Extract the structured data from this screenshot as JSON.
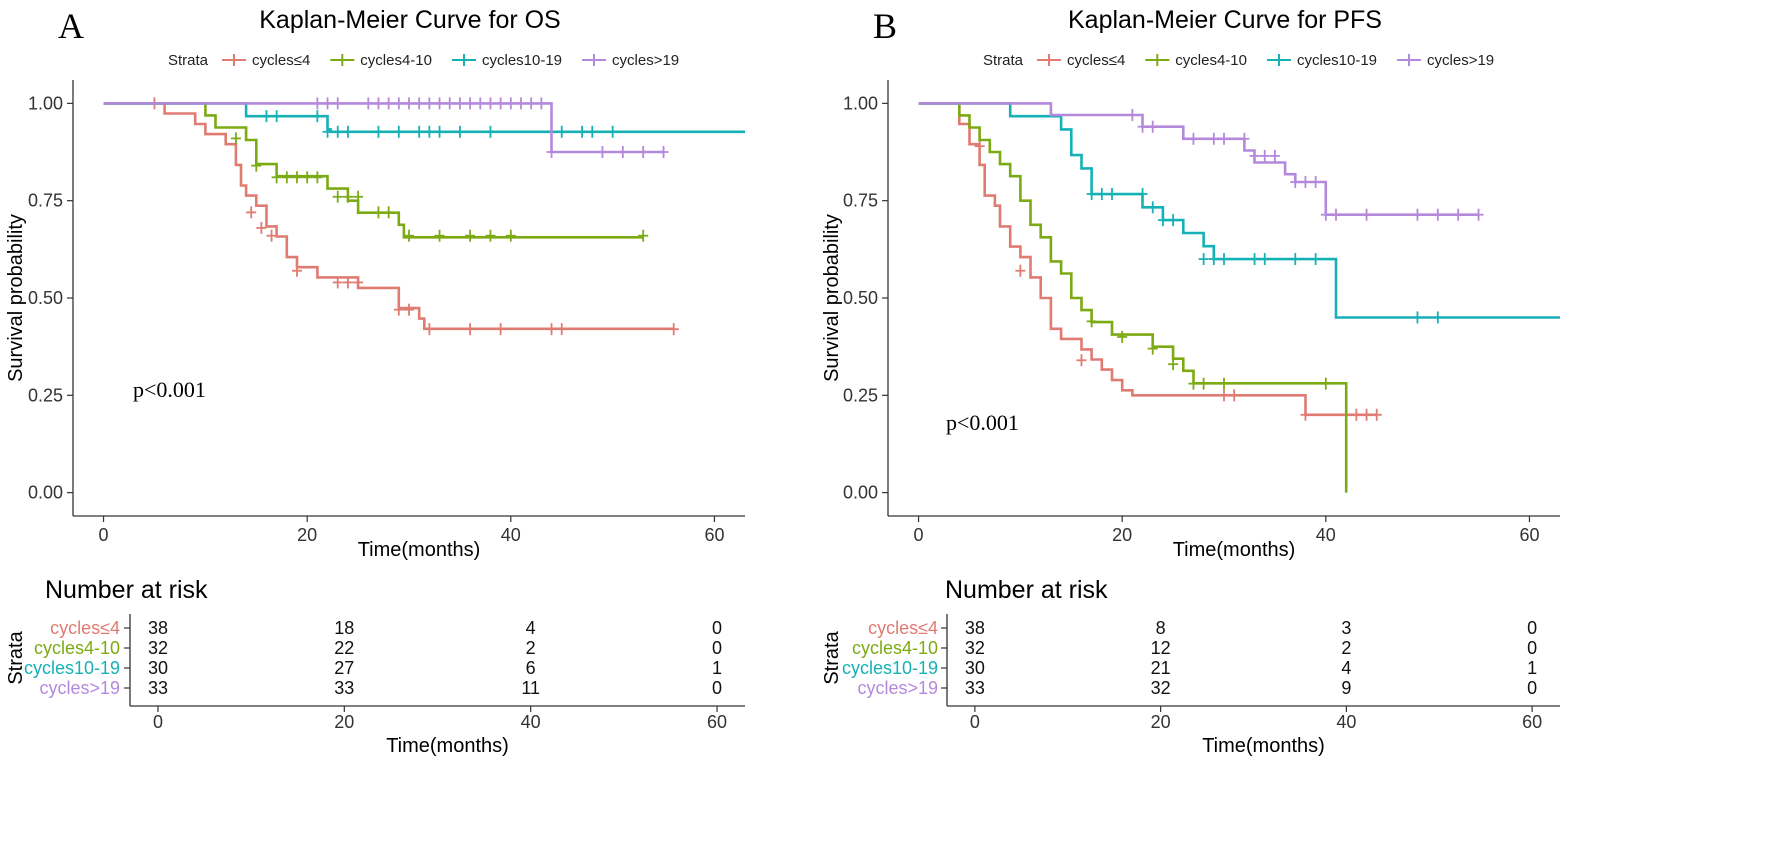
{
  "chart_data": [
    {
      "type": "line",
      "panel_label": "A",
      "title": "Kaplan-Meier Curve for OS",
      "xlabel": "Time(months)",
      "ylabel": "Survival probability",
      "xlim": [
        -3,
        63
      ],
      "ylim": [
        -0.06,
        1.06
      ],
      "x_ticks": [
        "0",
        "20",
        "40",
        "60"
      ],
      "y_ticks": [
        "0.00",
        "0.25",
        "0.50",
        "0.75",
        "1.00"
      ],
      "annotation": "p<0.001",
      "legend_title": "Strata",
      "legend_position": "top",
      "series": [
        {
          "name": "cycles≤4",
          "color": "#E07B72",
          "steps": [
            [
              0,
              1.0
            ],
            [
              6,
              0.974
            ],
            [
              9,
              0.947
            ],
            [
              10,
              0.921
            ],
            [
              12,
              0.895
            ],
            [
              13,
              0.842
            ],
            [
              13.5,
              0.789
            ],
            [
              14,
              0.763
            ],
            [
              15,
              0.737
            ],
            [
              16,
              0.684
            ],
            [
              17,
              0.658
            ],
            [
              18,
              0.605
            ],
            [
              19,
              0.579
            ],
            [
              21,
              0.553
            ],
            [
              25,
              0.526
            ],
            [
              29,
              0.474
            ],
            [
              31,
              0.447
            ],
            [
              31.5,
              0.421
            ]
          ],
          "end": 56,
          "censor": [
            [
              5,
              1.0
            ],
            [
              14.5,
              0.72
            ],
            [
              15.5,
              0.68
            ],
            [
              16.5,
              0.66
            ],
            [
              19,
              0.57
            ],
            [
              23,
              0.54
            ],
            [
              24,
              0.54
            ],
            [
              25,
              0.54
            ],
            [
              29,
              0.47
            ],
            [
              30,
              0.47
            ],
            [
              32,
              0.42
            ],
            [
              36,
              0.42
            ],
            [
              39,
              0.42
            ],
            [
              44,
              0.42
            ],
            [
              45,
              0.42
            ],
            [
              56,
              0.42
            ]
          ]
        },
        {
          "name": "cycles4-10",
          "color": "#7CAA13",
          "steps": [
            [
              0,
              1.0
            ],
            [
              10,
              0.969
            ],
            [
              11,
              0.938
            ],
            [
              14,
              0.906
            ],
            [
              15,
              0.844
            ],
            [
              17,
              0.813
            ],
            [
              22,
              0.781
            ],
            [
              24,
              0.75
            ],
            [
              25,
              0.719
            ],
            [
              29,
              0.688
            ],
            [
              29.5,
              0.656
            ]
          ],
          "end": 53,
          "censor": [
            [
              13,
              0.91
            ],
            [
              15,
              0.84
            ],
            [
              17,
              0.81
            ],
            [
              18,
              0.81
            ],
            [
              19,
              0.81
            ],
            [
              20,
              0.81
            ],
            [
              21,
              0.81
            ],
            [
              23,
              0.76
            ],
            [
              24,
              0.76
            ],
            [
              25,
              0.76
            ],
            [
              27,
              0.72
            ],
            [
              28,
              0.72
            ],
            [
              30,
              0.66
            ],
            [
              33,
              0.66
            ],
            [
              36,
              0.66
            ],
            [
              38,
              0.66
            ],
            [
              40,
              0.66
            ],
            [
              53,
              0.66
            ]
          ]
        },
        {
          "name": "cycles10-19",
          "color": "#16B1B6",
          "steps": [
            [
              0,
              1.0
            ],
            [
              14,
              0.967
            ],
            [
              22,
              0.933
            ],
            [
              22.3,
              0.927
            ]
          ],
          "end": 63,
          "censor": [
            [
              16,
              0.967
            ],
            [
              17,
              0.967
            ],
            [
              21,
              0.967
            ],
            [
              22,
              0.927
            ],
            [
              23,
              0.927
            ],
            [
              24,
              0.927
            ],
            [
              27,
              0.927
            ],
            [
              29,
              0.927
            ],
            [
              31,
              0.927
            ],
            [
              32,
              0.927
            ],
            [
              33,
              0.927
            ],
            [
              35,
              0.927
            ],
            [
              38,
              0.927
            ],
            [
              45,
              0.927
            ],
            [
              47,
              0.927
            ],
            [
              48,
              0.927
            ],
            [
              50,
              0.927
            ]
          ]
        },
        {
          "name": "cycles>19",
          "color": "#B489DC",
          "steps": [
            [
              0,
              1.0
            ],
            [
              44,
              0.875
            ]
          ],
          "end": 55,
          "censor": [
            [
              21,
              1.0
            ],
            [
              22,
              1.0
            ],
            [
              23,
              1.0
            ],
            [
              26,
              1.0
            ],
            [
              27,
              1.0
            ],
            [
              28,
              1.0
            ],
            [
              29,
              1.0
            ],
            [
              30,
              1.0
            ],
            [
              31,
              1.0
            ],
            [
              32,
              1.0
            ],
            [
              33,
              1.0
            ],
            [
              34,
              1.0
            ],
            [
              35,
              1.0
            ],
            [
              36,
              1.0
            ],
            [
              37,
              1.0
            ],
            [
              38,
              1.0
            ],
            [
              39,
              1.0
            ],
            [
              40,
              1.0
            ],
            [
              41,
              1.0
            ],
            [
              42,
              1.0
            ],
            [
              43,
              1.0
            ],
            [
              44,
              0.875
            ],
            [
              49,
              0.875
            ],
            [
              51,
              0.875
            ],
            [
              53,
              0.875
            ],
            [
              55,
              0.875
            ]
          ]
        }
      ],
      "risk_table": {
        "title": "Number at risk",
        "ylabel": "Strata",
        "xlabel": "Time(months)",
        "times": [
          "0",
          "20",
          "40",
          "60"
        ],
        "rows": [
          {
            "label": "cycles≤4",
            "color": "#E07B72",
            "values": [
              "38",
              "18",
              "4",
              "0"
            ]
          },
          {
            "label": "cycles4-10",
            "color": "#7CAA13",
            "values": [
              "32",
              "22",
              "2",
              "0"
            ]
          },
          {
            "label": "cycles10-19",
            "color": "#16B1B6",
            "values": [
              "30",
              "27",
              "6",
              "1"
            ]
          },
          {
            "label": "cycles>19",
            "color": "#B489DC",
            "values": [
              "33",
              "33",
              "11",
              "0"
            ]
          }
        ]
      }
    },
    {
      "type": "line",
      "panel_label": "B",
      "title": "Kaplan-Meier Curve for PFS",
      "xlabel": "Time(months)",
      "ylabel": "Survival probability",
      "xlim": [
        -3,
        63
      ],
      "ylim": [
        -0.06,
        1.06
      ],
      "x_ticks": [
        "0",
        "20",
        "40",
        "60"
      ],
      "y_ticks": [
        "0.00",
        "0.25",
        "0.50",
        "0.75",
        "1.00"
      ],
      "annotation": "p<0.001",
      "legend_title": "Strata",
      "legend_position": "top",
      "series": [
        {
          "name": "cycles≤4",
          "color": "#E07B72",
          "steps": [
            [
              0,
              1.0
            ],
            [
              4,
              0.947
            ],
            [
              5,
              0.895
            ],
            [
              6,
              0.842
            ],
            [
              6.5,
              0.763
            ],
            [
              7.5,
              0.737
            ],
            [
              8,
              0.684
            ],
            [
              9,
              0.632
            ],
            [
              10,
              0.605
            ],
            [
              11,
              0.553
            ],
            [
              12,
              0.5
            ],
            [
              13,
              0.421
            ],
            [
              14,
              0.395
            ],
            [
              16,
              0.368
            ],
            [
              17,
              0.342
            ],
            [
              18,
              0.316
            ],
            [
              19,
              0.289
            ],
            [
              20,
              0.263
            ],
            [
              21,
              0.25
            ],
            [
              38,
              0.2
            ]
          ],
          "end": 45,
          "censor": [
            [
              6,
              0.89
            ],
            [
              10,
              0.57
            ],
            [
              16,
              0.34
            ],
            [
              30,
              0.25
            ],
            [
              31,
              0.25
            ],
            [
              38,
              0.2
            ],
            [
              42,
              0.2
            ],
            [
              43,
              0.2
            ],
            [
              44,
              0.2
            ],
            [
              45,
              0.2
            ]
          ]
        },
        {
          "name": "cycles4-10",
          "color": "#7CAA13",
          "steps": [
            [
              0,
              1.0
            ],
            [
              4,
              0.969
            ],
            [
              5,
              0.938
            ],
            [
              6,
              0.906
            ],
            [
              7,
              0.875
            ],
            [
              8,
              0.844
            ],
            [
              9,
              0.813
            ],
            [
              10,
              0.75
            ],
            [
              11,
              0.688
            ],
            [
              12,
              0.656
            ],
            [
              13,
              0.594
            ],
            [
              14,
              0.563
            ],
            [
              15,
              0.5
            ],
            [
              16,
              0.469
            ],
            [
              17,
              0.438
            ],
            [
              19,
              0.406
            ],
            [
              23,
              0.375
            ],
            [
              25,
              0.344
            ],
            [
              26,
              0.313
            ],
            [
              27,
              0.281
            ],
            [
              42,
              0.0
            ]
          ],
          "end": 42,
          "censor": [
            [
              17,
              0.44
            ],
            [
              20,
              0.4
            ],
            [
              23,
              0.37
            ],
            [
              25,
              0.33
            ],
            [
              27,
              0.28
            ],
            [
              28,
              0.28
            ],
            [
              30,
              0.28
            ],
            [
              40,
              0.28
            ]
          ]
        },
        {
          "name": "cycles10-19",
          "color": "#16B1B6",
          "steps": [
            [
              0,
              1.0
            ],
            [
              9,
              0.967
            ],
            [
              14,
              0.933
            ],
            [
              15,
              0.867
            ],
            [
              16,
              0.833
            ],
            [
              17,
              0.767
            ],
            [
              22,
              0.733
            ],
            [
              24,
              0.7
            ],
            [
              26,
              0.667
            ],
            [
              28,
              0.633
            ],
            [
              29,
              0.6
            ],
            [
              41,
              0.45
            ]
          ],
          "end": 63,
          "censor": [
            [
              17,
              0.767
            ],
            [
              18,
              0.767
            ],
            [
              19,
              0.767
            ],
            [
              22,
              0.767
            ],
            [
              23,
              0.733
            ],
            [
              24,
              0.7
            ],
            [
              25,
              0.7
            ],
            [
              28,
              0.6
            ],
            [
              29,
              0.6
            ],
            [
              30,
              0.6
            ],
            [
              33,
              0.6
            ],
            [
              34,
              0.6
            ],
            [
              37,
              0.6
            ],
            [
              39,
              0.6
            ],
            [
              49,
              0.45
            ],
            [
              51,
              0.45
            ]
          ]
        },
        {
          "name": "cycles>19",
          "color": "#B489DC",
          "steps": [
            [
              0,
              1.0
            ],
            [
              13,
              0.97
            ],
            [
              22,
              0.94
            ],
            [
              26,
              0.909
            ],
            [
              32,
              0.879
            ],
            [
              33,
              0.848
            ],
            [
              36,
              0.818
            ],
            [
              37,
              0.798
            ],
            [
              40,
              0.714
            ]
          ],
          "end": 55,
          "censor": [
            [
              21,
              0.97
            ],
            [
              22,
              0.94
            ],
            [
              23,
              0.94
            ],
            [
              27,
              0.909
            ],
            [
              29,
              0.909
            ],
            [
              30,
              0.909
            ],
            [
              32,
              0.909
            ],
            [
              33,
              0.865
            ],
            [
              34,
              0.865
            ],
            [
              35,
              0.865
            ],
            [
              37,
              0.798
            ],
            [
              38,
              0.798
            ],
            [
              39,
              0.798
            ],
            [
              40,
              0.714
            ],
            [
              41,
              0.714
            ],
            [
              44,
              0.714
            ],
            [
              49,
              0.714
            ],
            [
              51,
              0.714
            ],
            [
              53,
              0.714
            ],
            [
              55,
              0.714
            ]
          ]
        }
      ],
      "risk_table": {
        "title": "Number at risk",
        "ylabel": "Strata",
        "xlabel": "Time(months)",
        "times": [
          "0",
          "20",
          "40",
          "60"
        ],
        "rows": [
          {
            "label": "cycles≤4",
            "color": "#E07B72",
            "values": [
              "38",
              "8",
              "3",
              "0"
            ]
          },
          {
            "label": "cycles4-10",
            "color": "#7CAA13",
            "values": [
              "32",
              "12",
              "2",
              "0"
            ]
          },
          {
            "label": "cycles10-19",
            "color": "#16B1B6",
            "values": [
              "30",
              "21",
              "4",
              "1"
            ]
          },
          {
            "label": "cycles>19",
            "color": "#B489DC",
            "values": [
              "33",
              "32",
              "9",
              "0"
            ]
          }
        ]
      }
    }
  ]
}
